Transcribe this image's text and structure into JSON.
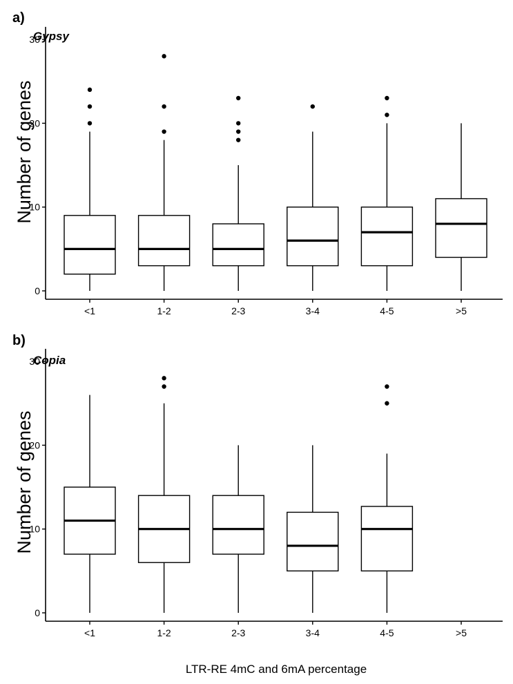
{
  "figure": {
    "xlabel": "LTR-RE 4mC and 6mA percentage"
  },
  "chart_data": [
    {
      "type": "box",
      "panel_label": "a)",
      "title": "Gypsy",
      "ylabel": "Number of genes",
      "ylim": [
        -1,
        31.5
      ],
      "yticks": [
        0,
        10,
        20,
        30
      ],
      "categories": [
        "<1",
        "1-2",
        "2-3",
        "3-4",
        "4-5",
        ">5"
      ],
      "boxes": [
        {
          "category": "<1",
          "whisker_low": 0,
          "q1": 2,
          "median": 5,
          "q3": 9,
          "whisker_high": 19,
          "outliers": [
            20,
            22,
            24
          ]
        },
        {
          "category": "1-2",
          "whisker_low": 0,
          "q1": 3,
          "median": 5,
          "q3": 9,
          "whisker_high": 18,
          "outliers": [
            19,
            22,
            28
          ]
        },
        {
          "category": "2-3",
          "whisker_low": 0,
          "q1": 3,
          "median": 5,
          "q3": 8,
          "whisker_high": 15,
          "outliers": [
            18,
            19,
            20,
            23
          ]
        },
        {
          "category": "3-4",
          "whisker_low": 0,
          "q1": 3,
          "median": 6,
          "q3": 10,
          "whisker_high": 19,
          "outliers": [
            22
          ]
        },
        {
          "category": "4-5",
          "whisker_low": 0,
          "q1": 3,
          "median": 7,
          "q3": 10,
          "whisker_high": 20,
          "outliers": [
            21,
            23
          ]
        },
        {
          "category": ">5",
          "whisker_low": 0,
          "q1": 4,
          "median": 8,
          "q3": 11,
          "whisker_high": 20,
          "outliers": []
        }
      ]
    },
    {
      "type": "box",
      "panel_label": "b)",
      "title": "Copia",
      "ylabel": "Number of genes",
      "ylim": [
        -1,
        31.5
      ],
      "yticks": [
        0,
        10,
        20,
        30
      ],
      "categories": [
        "<1",
        "1-2",
        "2-3",
        "3-4",
        "4-5",
        ">5"
      ],
      "boxes": [
        {
          "category": "<1",
          "whisker_low": 0,
          "q1": 7,
          "median": 11,
          "q3": 15,
          "whisker_high": 26,
          "outliers": []
        },
        {
          "category": "1-2",
          "whisker_low": 0,
          "q1": 6,
          "median": 10,
          "q3": 14,
          "whisker_high": 25,
          "outliers": [
            27,
            28
          ]
        },
        {
          "category": "2-3",
          "whisker_low": 0,
          "q1": 7,
          "median": 10,
          "q3": 14,
          "whisker_high": 20,
          "outliers": []
        },
        {
          "category": "3-4",
          "whisker_low": 0,
          "q1": 5,
          "median": 8,
          "q3": 12,
          "whisker_high": 20,
          "outliers": []
        },
        {
          "category": "4-5",
          "whisker_low": 0,
          "q1": 5,
          "median": 10,
          "q3": 12.7,
          "whisker_high": 19,
          "outliers": [
            25,
            27
          ]
        },
        {
          "category": ">5",
          "whisker_low": null,
          "q1": null,
          "median": null,
          "q3": null,
          "whisker_high": null,
          "outliers": []
        }
      ]
    }
  ]
}
